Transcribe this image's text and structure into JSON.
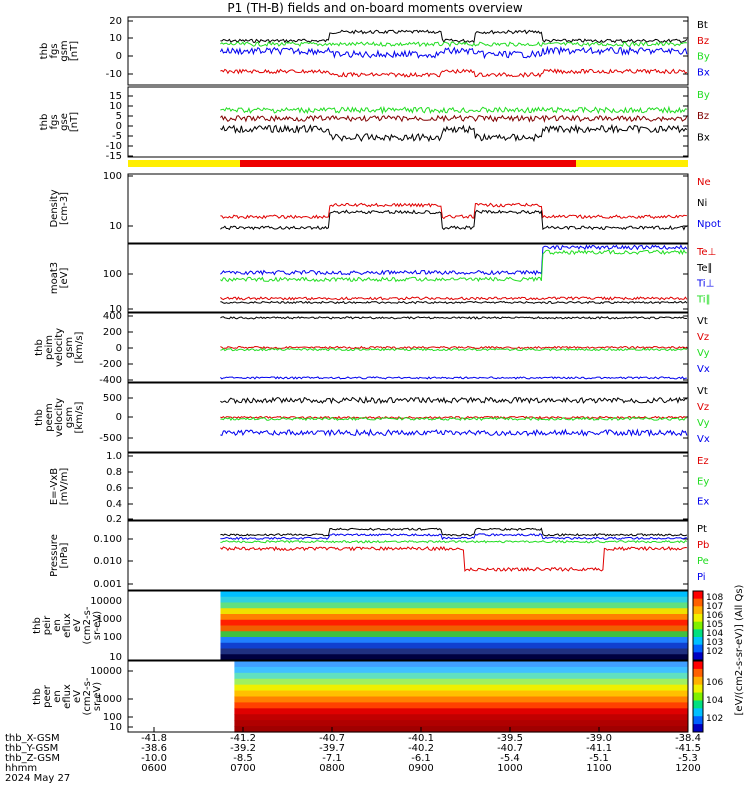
{
  "title": "P1 (TH-B) fields and on-board moments overview",
  "colors": {
    "black": "#000000",
    "red": "#e00000",
    "green": "#22dd22",
    "blue": "#0000ee",
    "yellow": "#ffee00",
    "bar_red": "#ee0000"
  },
  "chart_data": {
    "type": "line",
    "x_tick_labels": {
      "hhmm": [
        "0600",
        "0700",
        "0800",
        "0900",
        "1000",
        "1100",
        "1200"
      ],
      "thb_X-GSM": [
        "-41.8",
        "-41.2",
        "-40.7",
        "-40.1",
        "-39.5",
        "-39.0",
        "-38.4"
      ],
      "thb_Y-GSM": [
        "-38.6",
        "-39.2",
        "-39.7",
        "-40.2",
        "-40.7",
        "-41.1",
        "-41.5"
      ],
      "thb_Z-GSM": [
        "-10.0",
        "-8.5",
        "-7.1",
        "-6.1",
        "-5.4",
        "-5.1",
        "-5.3"
      ]
    },
    "x_row_labels": [
      "thb_X-GSM",
      "thb_Y-GSM",
      "thb_Z-GSM",
      "hhmm",
      "2024 May 27"
    ],
    "date": "2024 May 27",
    "panels": [
      {
        "id": "fgs_gsm",
        "ylabel": [
          "thb",
          "fgs",
          "gsm",
          "[nT]"
        ],
        "yticks": [
          "20",
          "10",
          "0",
          "-10"
        ],
        "legend": [
          "Bt",
          "Bz",
          "By",
          "Bx"
        ],
        "legend_colors": [
          "#000000",
          "#e00000",
          "#22dd22",
          "#0000ee"
        ],
        "ylim": [
          -17,
          21
        ]
      },
      {
        "id": "fgs_gse",
        "ylabel": [
          "thb",
          "fgs",
          "gse",
          "[nT]"
        ],
        "yticks": [
          "15",
          "10",
          "5",
          "0",
          "-5",
          "-10",
          "-15"
        ],
        "legend": [
          "By",
          "Bz",
          "Bx"
        ],
        "legend_colors": [
          "#22dd22",
          "#800000",
          "#000000"
        ],
        "ylim": [
          -18,
          17
        ]
      },
      {
        "id": "density",
        "ylabel": [
          "Density",
          "[cm-3]"
        ],
        "yticks": [
          "100",
          "10"
        ],
        "legend": [
          "Ne",
          "Ni",
          "Npot"
        ],
        "legend_colors": [
          "#e00000",
          "#000000",
          "#0000ee"
        ],
        "ylim": [
          4,
          100
        ],
        "log": true
      },
      {
        "id": "temperature",
        "ylabel": [
          "moat3",
          "[eV]"
        ],
        "yticks": [
          "100",
          "10"
        ],
        "legend": [
          "Te⊥",
          "Te∥",
          "Ti⊥",
          "Ti∥"
        ],
        "legend_colors": [
          "#e00000",
          "#000000",
          "#0000ee",
          "#22dd22"
        ],
        "ylim": [
          8,
          800
        ],
        "log": true
      },
      {
        "id": "peim_velocity",
        "ylabel": [
          "thb",
          "peim",
          "velocity",
          "gsm",
          "[km/s]"
        ],
        "yticks": [
          "400",
          "200",
          "0",
          "-200",
          "-400"
        ],
        "legend": [
          "Vt",
          "Vz",
          "Vy",
          "Vx"
        ],
        "legend_colors": [
          "#000000",
          "#e00000",
          "#22dd22",
          "#0000ee"
        ],
        "ylim": [
          -480,
          430
        ]
      },
      {
        "id": "peem_velocity",
        "ylabel": [
          "thb",
          "peem",
          "velocity",
          "gsm",
          "[km/s]"
        ],
        "yticks": [
          "500",
          "0",
          "-500"
        ],
        "legend": [
          "Vt",
          "Vz",
          "Vy",
          "Vx"
        ],
        "legend_colors": [
          "#000000",
          "#e00000",
          "#22dd22",
          "#0000ee"
        ],
        "ylim": [
          -800,
          800
        ]
      },
      {
        "id": "efield",
        "ylabel": [
          "E=-VxB",
          "[mV/m]"
        ],
        "yticks": [
          "1.0",
          "0.8",
          "0.6",
          "0.4",
          "0.2",
          "0.0"
        ],
        "legend": [
          "Ez",
          "Ey",
          "Ex"
        ],
        "legend_colors": [
          "#e00000",
          "#22dd22",
          "#0000ee"
        ],
        "ylim": [
          0,
          1
        ]
      },
      {
        "id": "pressure",
        "ylabel": [
          "Pressure",
          "[nPa]"
        ],
        "yticks": [
          "0.100",
          "0.010",
          "0.001"
        ],
        "legend": [
          "Pt",
          "Pb",
          "Pe",
          "Pi"
        ],
        "legend_colors": [
          "#000000",
          "#e00000",
          "#22dd22",
          "#0000ee"
        ],
        "ylim": [
          0.0001,
          0.5
        ],
        "log": true
      },
      {
        "id": "peir_spec",
        "ylabel": [
          "thb",
          "peir",
          "en",
          "eflux",
          "eV",
          "(cm2-s-",
          "sr-eV)"
        ],
        "yticks": [
          "10000",
          "1000",
          "100",
          "10"
        ],
        "type": "spectrogram"
      },
      {
        "id": "peer_spec",
        "ylabel": [
          "thb",
          "peer",
          "en",
          "eflux",
          "eV",
          "(cm2-s-",
          "sr-eV)"
        ],
        "yticks": [
          "10000",
          "1000",
          "100",
          "10"
        ],
        "type": "spectrogram"
      }
    ],
    "colorbar": {
      "label": "[eV/(cm2-s-sr-eV)] (All Qs)",
      "ticks_top": [
        "10^8",
        "10^7",
        "10^6",
        "10^5",
        "10^4",
        "10^3",
        "10^2"
      ],
      "ticks_bottom": [
        "10^6",
        "10^4",
        "10^2"
      ]
    },
    "state_bar": [
      {
        "start": 0,
        "end": 0.2,
        "color": "#ffee00"
      },
      {
        "start": 0.2,
        "end": 0.8,
        "color": "#ee0000"
      },
      {
        "start": 0.8,
        "end": 1.0,
        "color": "#ffee00"
      }
    ]
  }
}
